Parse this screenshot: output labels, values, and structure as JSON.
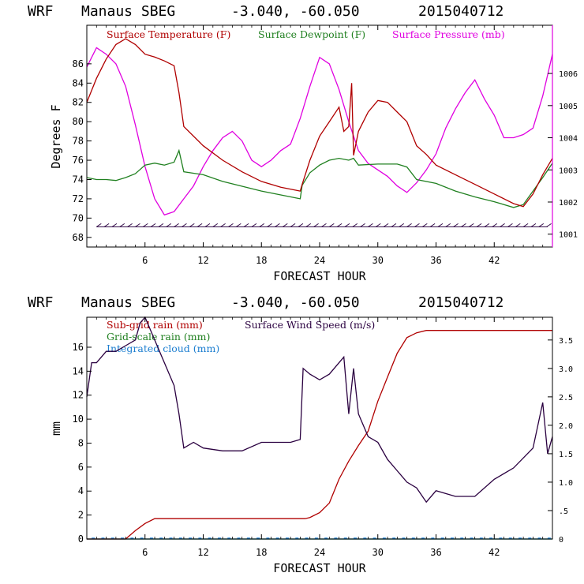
{
  "header": {
    "top": {
      "model": "WRF",
      "station": "Manaus SBEG",
      "coords": "-3.040, -60.050",
      "run": "2015040712"
    },
    "bottom": {
      "model": "WRF",
      "station": "Manaus SBEG",
      "coords": "-3.040, -60.050",
      "run": "2015040712"
    }
  },
  "colors": {
    "temperature": "#b00000",
    "dewpoint": "#208020",
    "pressure": "#e000e0",
    "subgrid": "#b00000",
    "gridscale": "#208020",
    "cloud": "#1e7fd0",
    "wind": "#2a0040",
    "pressure_frame": "#e000e0",
    "barbs": "#2a0040"
  },
  "chart_data": [
    {
      "type": "line",
      "legend": [
        "Surface Temperature (F)",
        "Surface Dewpoint (F)",
        "Surface Pressure (mb)"
      ],
      "ylabel": "Degrees F",
      "xlabel": "FORECAST HOUR",
      "x_ticks": [
        "6",
        "12",
        "18",
        "24",
        "30",
        "36",
        "42"
      ],
      "xlim": [
        0,
        48
      ],
      "ylim": [
        67,
        90
      ],
      "y_ticks": [
        "68",
        "70",
        "72",
        "74",
        "76",
        "78",
        "80",
        "82",
        "84",
        "86"
      ],
      "y2lim": [
        1000.6,
        1007.5
      ],
      "y2_ticks": [
        "1001",
        "1002",
        "1003",
        "1004",
        "1005",
        "1006"
      ],
      "series": [
        {
          "name": "Surface Temperature (F)",
          "x": [
            0,
            1,
            2,
            3,
            4,
            5,
            6,
            7,
            8,
            9,
            9.5,
            10,
            12,
            14,
            16,
            18,
            20,
            22,
            22.2,
            23,
            24,
            25,
            26,
            26.5,
            27,
            27.3,
            27.5,
            28,
            29,
            30,
            31,
            32,
            33,
            34,
            35,
            36,
            38,
            40,
            42,
            44,
            45,
            46,
            47,
            48
          ],
          "y": [
            82,
            84.5,
            86.5,
            88,
            88.6,
            88,
            87,
            86.7,
            86.3,
            85.8,
            83,
            79.5,
            77.5,
            76,
            74.8,
            73.8,
            73.2,
            72.8,
            73.5,
            76,
            78.5,
            80,
            81.5,
            79,
            79.5,
            84,
            76.5,
            79,
            81,
            82.2,
            82,
            81,
            80,
            77.5,
            76.6,
            75.5,
            74.5,
            73.5,
            72.5,
            71.5,
            71.2,
            72.5,
            74.5,
            76.2
          ]
        },
        {
          "name": "Surface Dewpoint (F)",
          "x": [
            0,
            1,
            2,
            3,
            4,
            5,
            6,
            7,
            8,
            9,
            9.5,
            10,
            12,
            14,
            16,
            18,
            20,
            22,
            22.2,
            23,
            24,
            25,
            26,
            27,
            27.5,
            28,
            30,
            32,
            33,
            34,
            36,
            38,
            40,
            42,
            44,
            45,
            46,
            47,
            48
          ],
          "y": [
            74.2,
            74,
            74,
            73.9,
            74.2,
            74.6,
            75.5,
            75.7,
            75.5,
            75.8,
            77,
            74.8,
            74.5,
            73.8,
            73.3,
            72.8,
            72.4,
            72,
            73.4,
            74.7,
            75.5,
            76,
            76.2,
            76,
            76.2,
            75.5,
            75.6,
            75.6,
            75.3,
            74,
            73.6,
            72.8,
            72.2,
            71.7,
            71.1,
            71.4,
            72.8,
            74.2,
            75.7
          ]
        },
        {
          "name": "Surface Pressure (mb)",
          "x": [
            0,
            1,
            2,
            3,
            4,
            5,
            6,
            7,
            8,
            9,
            10,
            11,
            12,
            13,
            14,
            15,
            16,
            17,
            18,
            19,
            20,
            21,
            22,
            23,
            24,
            25,
            26,
            27,
            28,
            29,
            30,
            31,
            32,
            33,
            34,
            35,
            36,
            37,
            38,
            39,
            40,
            41,
            42,
            43,
            44,
            45,
            46,
            47,
            48
          ],
          "y": [
            1006.2,
            1006.8,
            1006.6,
            1006.3,
            1005.6,
            1004.4,
            1003.1,
            1002.1,
            1001.6,
            1001.7,
            1002.1,
            1002.5,
            1003.1,
            1003.6,
            1004,
            1004.2,
            1003.9,
            1003.3,
            1003.1,
            1003.3,
            1003.6,
            1003.8,
            1004.6,
            1005.6,
            1006.5,
            1006.3,
            1005.5,
            1004.5,
            1003.6,
            1003.2,
            1003,
            1002.8,
            1002.5,
            1002.3,
            1002.6,
            1003,
            1003.5,
            1004.3,
            1004.9,
            1005.4,
            1005.8,
            1005.2,
            1004.7,
            1004,
            1004,
            1004.1,
            1004.3,
            1005.3,
            1006.6
          ]
        }
      ]
    },
    {
      "type": "line",
      "legend": [
        "Sub-grid rain (mm)",
        "Surface Wind Speed (m/s)",
        "Grid-scale rain (mm)",
        "Integrated cloud (mm)"
      ],
      "ylabel": "mm",
      "xlabel": "FORECAST HOUR",
      "x_ticks": [
        "6",
        "12",
        "18",
        "24",
        "30",
        "36",
        "42"
      ],
      "xlim": [
        0,
        48
      ],
      "ylim": [
        0,
        18.5
      ],
      "y_ticks": [
        "0",
        "2",
        "4",
        "6",
        "8",
        "10",
        "12",
        "14",
        "16"
      ],
      "y2lim": [
        0,
        3.9
      ],
      "y2_ticks": [
        "0",
        ".5",
        "1.0",
        "1.5",
        "2.0",
        "2.5",
        "3.0",
        "3.5"
      ],
      "series": [
        {
          "name": "Sub-grid rain (mm)",
          "x": [
            0,
            4,
            5,
            6,
            7,
            22.5,
            23,
            24,
            25,
            26,
            27,
            28,
            29,
            30,
            31,
            32,
            33,
            34,
            35,
            48
          ],
          "y": [
            0,
            0,
            0.7,
            1.3,
            1.7,
            1.7,
            1.8,
            2.2,
            3.0,
            5.0,
            6.5,
            7.8,
            9.0,
            11.5,
            13.5,
            15.5,
            16.8,
            17.2,
            17.4,
            17.4
          ]
        },
        {
          "name": "Grid-scale rain (mm)",
          "x": [
            0,
            48
          ],
          "y": [
            0,
            0
          ]
        },
        {
          "name": "Integrated cloud (mm)",
          "x": [
            0,
            48
          ],
          "y": [
            0,
            0
          ]
        },
        {
          "name": "Surface Wind Speed (m/s)",
          "x": [
            0,
            0.5,
            1,
            2,
            3,
            4,
            5,
            5.5,
            6,
            7,
            8,
            9,
            9.5,
            10,
            11,
            12,
            14,
            16,
            18,
            19,
            20,
            21,
            22,
            22.3,
            23,
            24,
            25,
            26,
            26.5,
            27,
            27.5,
            28,
            29,
            30,
            31,
            32,
            33,
            34,
            35,
            36,
            37,
            38,
            40,
            42,
            44,
            46,
            47,
            47.5,
            48
          ],
          "y": [
            2.5,
            3.1,
            3.1,
            3.3,
            3.3,
            3.4,
            3.5,
            3.8,
            3.9,
            3.5,
            3.1,
            2.7,
            2.2,
            1.6,
            1.7,
            1.6,
            1.55,
            1.55,
            1.7,
            1.7,
            1.7,
            1.7,
            1.75,
            3.0,
            2.9,
            2.8,
            2.9,
            3.1,
            3.2,
            2.2,
            3.0,
            2.2,
            1.8,
            1.7,
            1.4,
            1.2,
            1.0,
            0.9,
            0.65,
            0.85,
            0.8,
            0.75,
            0.75,
            1.05,
            1.25,
            1.6,
            2.4,
            1.5,
            1.8
          ]
        }
      ]
    }
  ]
}
